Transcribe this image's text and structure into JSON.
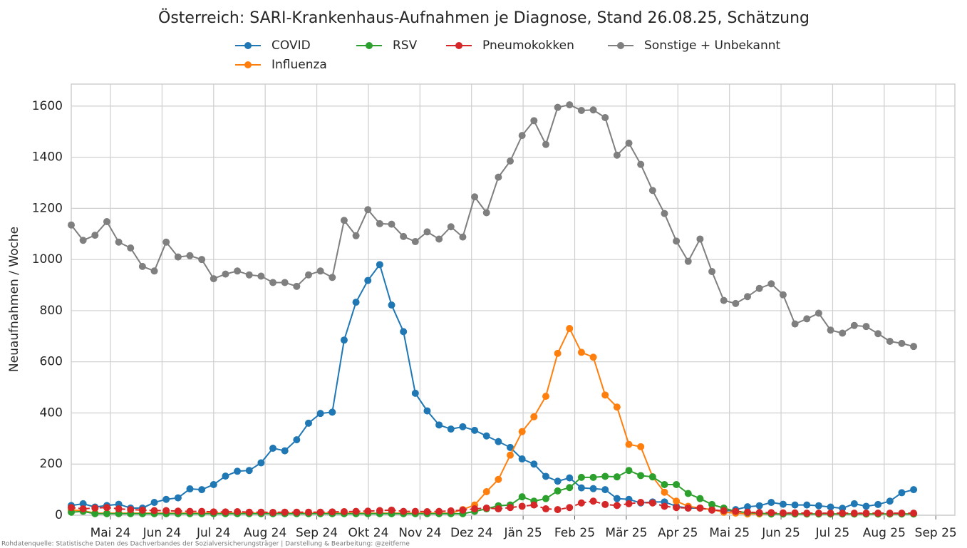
{
  "chart_data": {
    "type": "line",
    "title": "Österreich: SARI-Krankenhaus-Aufnahmen je Diagnose, Stand 26.08.25, Schätzung",
    "y_label": "Neuaufnahmen / Woche",
    "source": "Rohdatenquelle: Statistische Daten des Dachverbandes der Sozialversicherungsträger | Darstellung & Bearbeitung: @zeitferne",
    "x": [
      3.24,
      3.47,
      3.7,
      3.93,
      4.16,
      4.39,
      4.62,
      4.85,
      5.08,
      5.31,
      5.54,
      5.77,
      6.0,
      6.23,
      6.46,
      6.69,
      6.92,
      7.15,
      7.38,
      7.61,
      7.84,
      8.07,
      8.3,
      8.53,
      8.76,
      8.99,
      9.22,
      9.45,
      9.68,
      9.91,
      10.14,
      10.37,
      10.6,
      10.83,
      11.06,
      11.29,
      11.52,
      11.75,
      11.98,
      12.21,
      12.44,
      12.67,
      12.9,
      13.13,
      13.36,
      13.59,
      13.82,
      14.05,
      14.28,
      14.51,
      14.74,
      14.97,
      15.2,
      15.43,
      15.66,
      15.89,
      16.12,
      16.35,
      16.58,
      16.81,
      17.04,
      17.27,
      17.5,
      17.73,
      17.96,
      18.19,
      18.42,
      18.65,
      18.88,
      19.11,
      19.34,
      19.57
    ],
    "xlim": [
      3.24,
      20.37
    ],
    "xticks": [
      {
        "value": 4,
        "label": "Mai 24"
      },
      {
        "value": 5,
        "label": "Jun 24"
      },
      {
        "value": 6,
        "label": "Jul 24"
      },
      {
        "value": 7,
        "label": "Aug 24"
      },
      {
        "value": 8,
        "label": "Sep 24"
      },
      {
        "value": 9,
        "label": "Okt 24"
      },
      {
        "value": 10,
        "label": "Nov 24"
      },
      {
        "value": 11,
        "label": "Dez 24"
      },
      {
        "value": 12,
        "label": "Jän 25"
      },
      {
        "value": 13,
        "label": "Feb 25"
      },
      {
        "value": 14,
        "label": "Mär 25"
      },
      {
        "value": 15,
        "label": "Apr 25"
      },
      {
        "value": 16,
        "label": "Mai 25"
      },
      {
        "value": 17,
        "label": "Jun 25"
      },
      {
        "value": 18,
        "label": "Jul 25"
      },
      {
        "value": 19,
        "label": "Aug 25"
      },
      {
        "value": 20,
        "label": "Sep 25"
      }
    ],
    "ylim": [
      0,
      1686
    ],
    "yticks": [
      0,
      200,
      400,
      600,
      800,
      1000,
      1200,
      1400,
      1600
    ],
    "grid": true,
    "series": [
      {
        "name": "COVID",
        "color": "#1f77b4",
        "dashed": false,
        "values": [
          38,
          45,
          32,
          38,
          43,
          28,
          28,
          50,
          62,
          68,
          103,
          100,
          120,
          153,
          172,
          175,
          205,
          262,
          252,
          295,
          360,
          398,
          403,
          685,
          833,
          918,
          980,
          822,
          718,
          477,
          408,
          353,
          337,
          346,
          332,
          310,
          288,
          265,
          220,
          200,
          152,
          133,
          146,
          107,
          104,
          100,
          65,
          62,
          48,
          52,
          52,
          35,
          28,
          28,
          22,
          15,
          22,
          33,
          37,
          50,
          43,
          40,
          40,
          37,
          32,
          27,
          45,
          35,
          42,
          55,
          88,
          100
        ]
      },
      {
        "name": "Influenza",
        "color": "#ff7f0e",
        "dashed": false,
        "values": [
          20,
          18,
          8,
          8,
          8,
          8,
          8,
          8,
          8,
          8,
          8,
          8,
          8,
          8,
          8,
          8,
          8,
          8,
          8,
          8,
          8,
          8,
          8,
          8,
          8,
          8,
          8,
          8,
          8,
          8,
          8,
          8,
          8,
          22,
          40,
          92,
          140,
          235,
          327,
          385,
          465,
          633,
          730,
          637,
          618,
          470,
          423,
          277,
          268,
          150,
          90,
          55,
          35,
          28,
          22,
          12,
          8,
          5,
          5,
          5,
          5,
          5,
          5,
          5,
          5,
          5,
          5,
          5,
          5,
          5,
          5,
          5
        ]
      },
      {
        "name": "RSV",
        "color": "#2ca02c",
        "dashed": false,
        "values": [
          12,
          15,
          6,
          6,
          6,
          6,
          6,
          6,
          6,
          6,
          6,
          6,
          6,
          6,
          6,
          6,
          6,
          6,
          6,
          6,
          6,
          6,
          6,
          6,
          6,
          6,
          6,
          6,
          6,
          6,
          6,
          6,
          6,
          6,
          15,
          25,
          37,
          40,
          72,
          55,
          65,
          95,
          108,
          148,
          148,
          152,
          150,
          175,
          155,
          150,
          120,
          120,
          85,
          65,
          42,
          28,
          15,
          10,
          8,
          5,
          5,
          5,
          5,
          5,
          5,
          5,
          5,
          5,
          5,
          5,
          5,
          5
        ]
      },
      {
        "name": "Pneumokokken",
        "color": "#d62728",
        "dashed": true,
        "values": [
          30,
          25,
          28,
          30,
          25,
          22,
          20,
          18,
          18,
          16,
          15,
          15,
          13,
          13,
          14,
          12,
          12,
          11,
          12,
          12,
          12,
          12,
          13,
          14,
          15,
          16,
          18,
          20,
          15,
          15,
          14,
          15,
          17,
          20,
          25,
          28,
          25,
          30,
          35,
          40,
          25,
          22,
          30,
          48,
          55,
          42,
          38,
          45,
          50,
          48,
          35,
          30,
          28,
          28,
          20,
          18,
          15,
          12,
          10,
          10,
          9,
          9,
          8,
          8,
          8,
          8,
          8,
          8,
          8,
          8,
          8,
          8
        ]
      },
      {
        "name": "Sonstige + Unbekannt",
        "color": "#7f7f7f",
        "dashed": false,
        "values": [
          1135,
          1075,
          1095,
          1148,
          1068,
          1045,
          973,
          955,
          1068,
          1010,
          1015,
          1000,
          925,
          943,
          955,
          940,
          935,
          910,
          910,
          895,
          940,
          955,
          930,
          1153,
          1093,
          1195,
          1140,
          1138,
          1090,
          1070,
          1108,
          1080,
          1128,
          1088,
          1245,
          1183,
          1322,
          1385,
          1485,
          1543,
          1450,
          1595,
          1605,
          1583,
          1585,
          1555,
          1408,
          1455,
          1372,
          1270,
          1180,
          1072,
          993,
          1080,
          953,
          840,
          828,
          855,
          887,
          905,
          862,
          748,
          768,
          790,
          724,
          712,
          742,
          738,
          710,
          680,
          672,
          660
        ]
      }
    ]
  }
}
